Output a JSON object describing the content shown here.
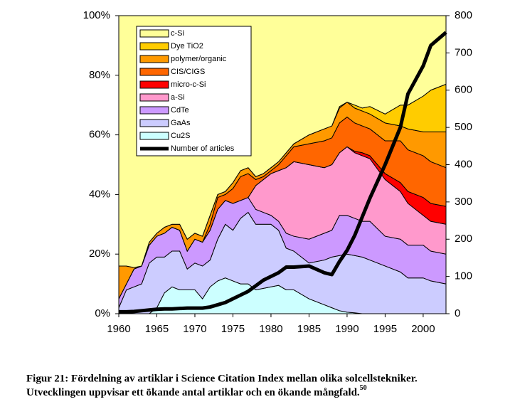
{
  "chart_data": {
    "type": "area",
    "stacked": true,
    "x": [
      1960,
      1961,
      1962,
      1963,
      1964,
      1965,
      1966,
      1967,
      1968,
      1969,
      1970,
      1971,
      1972,
      1973,
      1974,
      1975,
      1976,
      1977,
      1978,
      1979,
      1980,
      1981,
      1982,
      1983,
      1985,
      1987,
      1988,
      1989,
      1990,
      1991,
      1992,
      1993,
      1995,
      1997,
      1998,
      2000,
      2001,
      2003
    ],
    "xlim": [
      1960,
      2003
    ],
    "xticks": [
      1960,
      1965,
      1970,
      1975,
      1980,
      1985,
      1990,
      1995,
      2000
    ],
    "ylim": [
      0,
      100
    ],
    "yticks": [
      {
        "value": 0,
        "label": "0%"
      },
      {
        "value": 20,
        "label": "20%"
      },
      {
        "value": 40,
        "label": "40%"
      },
      {
        "value": 60,
        "label": "60%"
      },
      {
        "value": 80,
        "label": "80%"
      },
      {
        "value": 100,
        "label": "100%"
      }
    ],
    "y2lim": [
      0,
      800
    ],
    "y2ticks": [
      0,
      100,
      200,
      300,
      400,
      500,
      600,
      700,
      800
    ],
    "legend": "top-left",
    "series": [
      {
        "name": "Cu2S",
        "color": "#ccffff",
        "values": [
          0,
          0,
          0,
          0,
          0,
          2,
          7,
          9,
          8,
          8,
          8,
          5,
          9,
          11,
          12,
          11,
          10,
          10,
          8,
          8.5,
          9,
          9.5,
          8,
          8,
          5,
          3,
          2,
          1,
          0.5,
          0.3,
          0,
          0,
          0,
          0,
          0,
          0,
          0,
          0
        ]
      },
      {
        "name": "GaAs",
        "color": "#ccccff",
        "values": [
          2,
          8,
          9,
          10,
          17,
          17,
          12,
          12,
          13,
          7,
          9,
          11,
          9,
          14,
          18,
          17,
          22,
          24,
          22,
          21.5,
          21,
          18.5,
          14,
          13,
          12,
          15,
          17,
          18.5,
          19.5,
          19.2,
          19,
          18,
          16,
          14,
          12,
          12,
          11,
          10
        ]
      },
      {
        "name": "CdTe",
        "color": "#cc99ff",
        "values": [
          3,
          2,
          6,
          6,
          6,
          7,
          8,
          8,
          7,
          6,
          8,
          8,
          10,
          10,
          8,
          9,
          6,
          5,
          5,
          4,
          3,
          3,
          5,
          5,
          8,
          9,
          9,
          13.5,
          13,
          12.5,
          12,
          13,
          10,
          11,
          11,
          11,
          10,
          10
        ]
      },
      {
        "name": "a-Si",
        "color": "#ff99cc",
        "values": [
          0,
          0,
          0,
          0,
          0,
          0,
          0,
          0,
          0,
          0,
          0,
          0,
          0,
          0,
          0,
          0,
          0,
          0,
          8,
          11,
          14,
          17,
          22,
          25,
          25,
          22,
          22,
          21,
          23,
          22,
          22,
          21,
          19,
          16,
          14,
          10,
          10,
          10
        ]
      },
      {
        "name": "micro-c-Si",
        "color": "#ff0000",
        "values": [
          0,
          0,
          0,
          0,
          0,
          0,
          0,
          0,
          0,
          0,
          0,
          0,
          0,
          0,
          0,
          0,
          0,
          0,
          0,
          0,
          0,
          0,
          0,
          0,
          0,
          0,
          0,
          0,
          0,
          0.5,
          1,
          1,
          2,
          3,
          4,
          6,
          6,
          6
        ]
      },
      {
        "name": "CIS/CIGS",
        "color": "#ff6600",
        "values": [
          0,
          0,
          0,
          0,
          0,
          0,
          0,
          0,
          0,
          0,
          0,
          0,
          2,
          4,
          2,
          5,
          8,
          8,
          2,
          1,
          1,
          2,
          4,
          5,
          7,
          9,
          9,
          10,
          10,
          9.5,
          9,
          9,
          11,
          14,
          14,
          14,
          14,
          13
        ]
      },
      {
        "name": "polymer/organic",
        "color": "#ff9900",
        "values": [
          11,
          6,
          0.5,
          0,
          1,
          1,
          2,
          1,
          2,
          4,
          2,
          2,
          3,
          1,
          1,
          2,
          2,
          2,
          1,
          1,
          1,
          1,
          1,
          1,
          3,
          4,
          4,
          5,
          5,
          5,
          5,
          5,
          6,
          5,
          7,
          8,
          10,
          12
        ]
      },
      {
        "name": "Dye TiO2",
        "color": "#ffcc00",
        "values": [
          0,
          0,
          0,
          0,
          0,
          0,
          0,
          0,
          0,
          0,
          0,
          0,
          0,
          0,
          0,
          0,
          0,
          0,
          0,
          0,
          0,
          0,
          0,
          0,
          0,
          0,
          0,
          0.5,
          0,
          1,
          1,
          2.5,
          3,
          7,
          8,
          12,
          14,
          16
        ]
      },
      {
        "name": "c-Si",
        "color": "#ffff99",
        "values": [
          84,
          84,
          84.5,
          84,
          76,
          73,
          71,
          70,
          70,
          75,
          73,
          74,
          67,
          60,
          59,
          56,
          52,
          51,
          54,
          53,
          51,
          49,
          46,
          43,
          40,
          38,
          37,
          30.5,
          29,
          30,
          31,
          30.5,
          33,
          30,
          30,
          27,
          25,
          23
        ]
      },
      {
        "name": "Number of articles",
        "type": "line",
        "axis": "y2",
        "color": "#000000",
        "values": [
          5,
          5,
          6,
          8,
          10,
          12,
          13,
          13,
          14,
          15,
          15,
          15,
          18,
          24,
          30,
          40,
          50,
          60,
          75,
          90,
          100,
          110,
          125,
          125,
          128,
          110,
          105,
          140,
          170,
          210,
          260,
          310,
          400,
          500,
          590,
          665,
          720,
          755
        ]
      }
    ]
  },
  "caption": {
    "line1": "Figur 21: Fördelning av artiklar i Science Citation Index mellan olika solcellstekniker.",
    "line2": "Utvecklingen uppvisar ett ökande antal artiklar och en ökande mångfald.",
    "ref": "50"
  }
}
